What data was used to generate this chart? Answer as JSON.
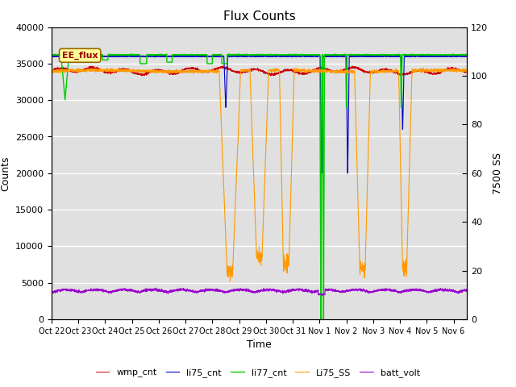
{
  "title": "Flux Counts",
  "ylabel_left": "Counts",
  "ylabel_right": "7500 SS",
  "xlabel": "Time",
  "ylim_left": [
    0,
    40000
  ],
  "ylim_right": [
    0,
    120
  ],
  "xtick_labels": [
    "Oct 22",
    "Oct 23",
    "Oct 24",
    "Oct 25",
    "Oct 26",
    "Oct 27",
    "Oct 28",
    "Oct 29",
    "Oct 30",
    "Oct 31",
    "Nov 1",
    "Nov 2",
    "Nov 3",
    "Nov 4",
    "Nov 5",
    "Nov 6"
  ],
  "annotation_text": "EE_flux",
  "background_color": "#e0e0e0",
  "legend_entries": [
    "wmp_cnt",
    "li75_cnt",
    "li77_cnt",
    "Li75_SS",
    "batt_volt"
  ],
  "wmp_color": "#cc0000",
  "li75_color": "#0000cc",
  "li77_color": "#00cc00",
  "Li75SS_color": "#ff9900",
  "batt_color": "#9900cc",
  "title_fontsize": 11,
  "n_pts": 3000,
  "total_days": 15.5
}
